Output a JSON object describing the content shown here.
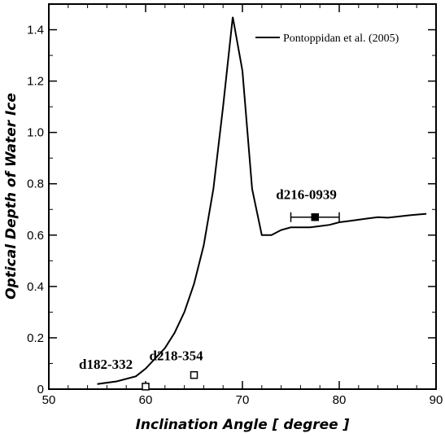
{
  "chart_data": {
    "type": "line",
    "xlabel": "Inclination Angle [ degree ]",
    "ylabel": "Optical Depth of Water Ice",
    "xlim": [
      50,
      90
    ],
    "ylim": [
      0,
      1.5
    ],
    "xticks": [
      50,
      60,
      70,
      80,
      90
    ],
    "yticks": [
      0,
      0.2,
      0.4,
      0.6,
      0.8,
      1.0,
      1.2,
      1.4
    ],
    "xtick_labels": [
      "50",
      "60",
      "70",
      "80",
      "90"
    ],
    "ytick_labels": [
      "0",
      "0.2",
      "0.4",
      "0.6",
      "0.8",
      "1.0",
      "1.2",
      "1.4"
    ],
    "legend": {
      "placement": "top-right",
      "entries": [
        "Pontoppidan et al. (2005)"
      ]
    },
    "series": [
      {
        "name": "Pontoppidan et al. (2005)",
        "x": [
          55,
          57,
          59,
          60,
          61,
          62,
          63,
          64,
          65,
          66,
          67,
          68,
          69,
          70,
          71,
          72,
          73,
          74,
          75,
          76,
          77,
          78,
          79,
          80,
          81,
          82,
          83,
          84,
          85,
          86,
          87,
          88,
          89
        ],
        "y": [
          0.02,
          0.03,
          0.05,
          0.08,
          0.12,
          0.16,
          0.22,
          0.3,
          0.41,
          0.56,
          0.78,
          1.1,
          1.45,
          1.24,
          0.78,
          0.6,
          0.6,
          0.62,
          0.63,
          0.63,
          0.63,
          0.635,
          0.64,
          0.65,
          0.655,
          0.66,
          0.665,
          0.67,
          0.668,
          0.672,
          0.676,
          0.68,
          0.683
        ]
      }
    ],
    "points": [
      {
        "label": "d182-332",
        "x": 60,
        "y": 0.01,
        "filled": false
      },
      {
        "label": "d218-354",
        "x": 65,
        "y": 0.055,
        "filled": false
      },
      {
        "label": "d216-0939",
        "x": 77.5,
        "y": 0.67,
        "filled": true,
        "xerr": [
          75,
          80
        ]
      }
    ]
  }
}
